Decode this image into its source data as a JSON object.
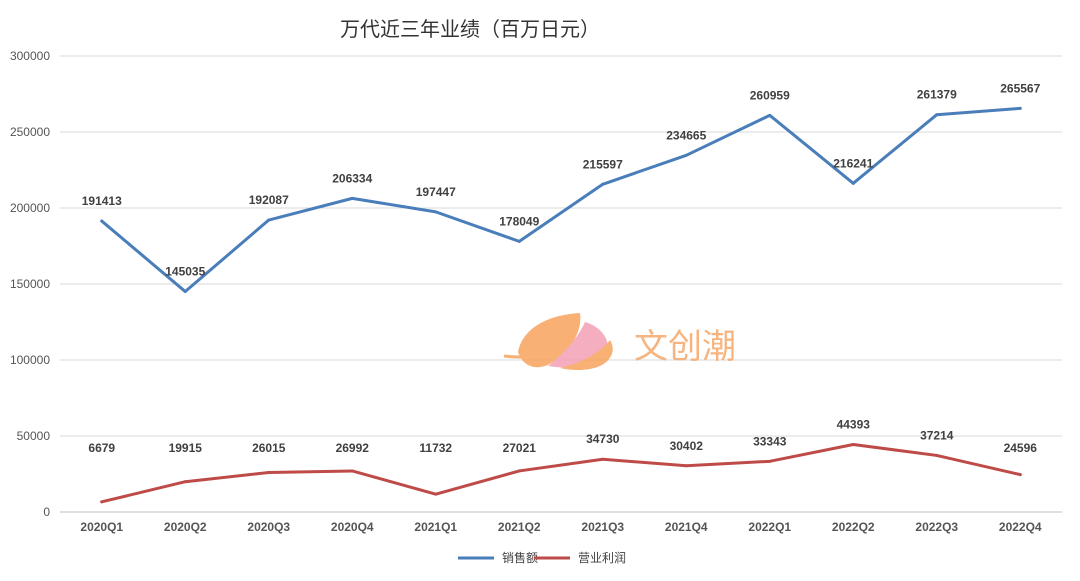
{
  "chart_data": {
    "type": "line",
    "title": "万代近三年业绩（百万日元）",
    "categories": [
      "2020Q1",
      "2020Q2",
      "2020Q3",
      "2020Q4",
      "2021Q1",
      "2021Q2",
      "2021Q3",
      "2021Q4",
      "2022Q1",
      "2022Q2",
      "2022Q3",
      "2022Q4"
    ],
    "series": [
      {
        "name": "销售额",
        "color": "#4a7ebb",
        "values": [
          191413,
          145035,
          192087,
          206334,
          197447,
          178049,
          215597,
          234665,
          260959,
          216241,
          261379,
          265567
        ]
      },
      {
        "name": "营业利润",
        "color": "#be4b48",
        "values": [
          6679,
          19915,
          26015,
          26992,
          11732,
          27021,
          34730,
          30402,
          33343,
          44393,
          37214,
          24596
        ]
      }
    ],
    "ylim": [
      0,
      300000
    ],
    "yticks": [
      0,
      50000,
      100000,
      150000,
      200000,
      250000,
      300000
    ],
    "ytick_labels": [
      "0",
      "50000",
      "100000",
      "150000",
      "200000",
      "250000",
      "300000"
    ],
    "grid": true,
    "legend": "bottom-center",
    "xlabel": "",
    "ylabel": ""
  },
  "watermark": {
    "text": "文创潮",
    "colors": {
      "leaf": "#f7a35c",
      "petal": "#f4a0b5"
    }
  }
}
